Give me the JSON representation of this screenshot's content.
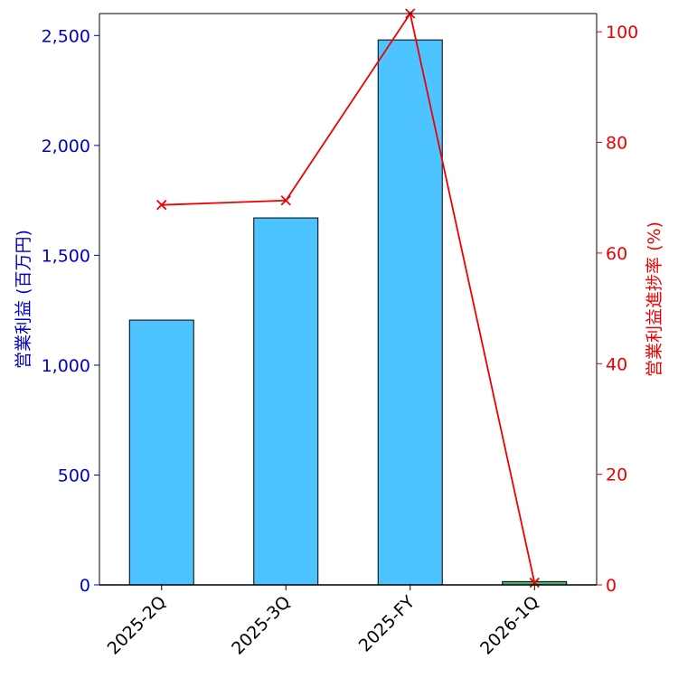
{
  "chart_data": {
    "type": "bar",
    "categories": [
      "2025-2Q",
      "2025-3Q",
      "2025-FY",
      "2026-1Q"
    ],
    "ylabel": "営業利益 (百万円)",
    "y2label": "営業利益進捗率 (%)",
    "ylim": [
      0,
      2600
    ],
    "y2lim": [
      0,
      103.3
    ],
    "yticks": [
      "0",
      "500",
      "1,000",
      "1,500",
      "2,000",
      "2,500"
    ],
    "ytick_values": [
      0,
      500,
      1000,
      1500,
      2000,
      2500
    ],
    "y2ticks": [
      "0",
      "20",
      "40",
      "60",
      "80",
      "100"
    ],
    "y2tick_values": [
      0,
      20,
      40,
      60,
      80,
      100
    ],
    "series": [
      {
        "type": "bar",
        "axis": "left",
        "values": [
          1205,
          1670,
          2480,
          15
        ],
        "colors": [
          "#4dc3ff",
          "#4dc3ff",
          "#4dc3ff",
          "#3fb46a"
        ]
      },
      {
        "type": "line",
        "axis": "right",
        "marker": "x",
        "color": "#ee0000",
        "values": [
          68.7,
          69.5,
          103.3,
          0.4
        ]
      }
    ],
    "left_axis_color": "#0000cc",
    "right_axis_color": "#ee0000",
    "grid": false
  }
}
